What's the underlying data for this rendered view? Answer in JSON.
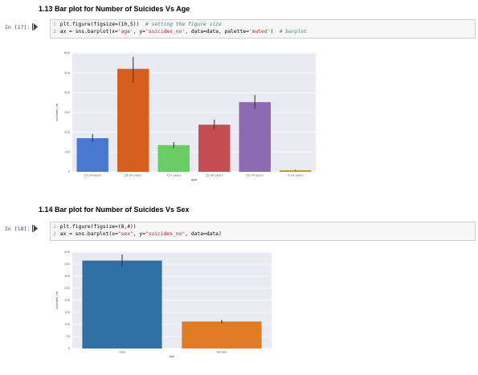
{
  "section1": {
    "heading": "1.13 Bar plot for Number of Suicides Vs Age",
    "prompt": "In [17]:",
    "code": [
      {
        "n": "1",
        "parts": [
          [
            "plt.figure(figsize=(10,5))  ",
            "c"
          ],
          [
            "# setting the figure size",
            "cm"
          ]
        ]
      },
      {
        "n": "2",
        "parts": [
          [
            "ax = sns.barplot(x=",
            "c"
          ],
          [
            "'age'",
            "str"
          ],
          [
            ", y=",
            "c"
          ],
          [
            "'suicides_no'",
            "str"
          ],
          [
            ", data=data, palette=",
            "c"
          ],
          [
            "'muted'",
            "str"
          ],
          [
            ")  ",
            "c"
          ],
          [
            "# barplot",
            "cm"
          ]
        ]
      }
    ]
  },
  "section2": {
    "heading": "1.14 Bar plot for Number of Suicides Vs Sex",
    "prompt": "In [18]:",
    "code": [
      {
        "n": "1",
        "parts": [
          [
            "plt.figure(figsize=(8,4))",
            "c"
          ]
        ]
      },
      {
        "n": "2",
        "parts": [
          [
            "ax = sns.barplot(x=",
            "c"
          ],
          [
            "\"sex\"",
            "str"
          ],
          [
            ", y=",
            "c"
          ],
          [
            "\"suicides_no\"",
            "str"
          ],
          [
            ", data=data)",
            "c"
          ]
        ]
      }
    ]
  },
  "chart_data": [
    {
      "type": "bar",
      "xlabel": "age",
      "ylabel": "suicides_no",
      "ylim": [
        0,
        600
      ],
      "yticks": [
        0,
        100,
        200,
        300,
        400,
        500,
        600
      ],
      "categories": [
        "15-24 years",
        "35-54 years",
        "75+ years",
        "25-34 years",
        "55-74 years",
        "5-14 years"
      ],
      "values": [
        170,
        520,
        135,
        238,
        352,
        8
      ],
      "error_low": [
        150,
        450,
        120,
        212,
        318,
        6
      ],
      "error_high": [
        190,
        580,
        150,
        264,
        388,
        11
      ],
      "colors": [
        "#4878cf",
        "#d65f20",
        "#6acc65",
        "#c44e52",
        "#8e6ab1",
        "#c4a000"
      ],
      "grid": true
    },
    {
      "type": "bar",
      "xlabel": "sex",
      "ylabel": "suicides_no",
      "ylim": [
        0,
        400
      ],
      "yticks": [
        0,
        50,
        100,
        150,
        200,
        250,
        300,
        350,
        400
      ],
      "categories": [
        "male",
        "female"
      ],
      "values": [
        365,
        112
      ],
      "error_low": [
        340,
        105
      ],
      "error_high": [
        390,
        119
      ],
      "colors": [
        "#2f6fa4",
        "#e07b26"
      ],
      "grid": true
    }
  ]
}
